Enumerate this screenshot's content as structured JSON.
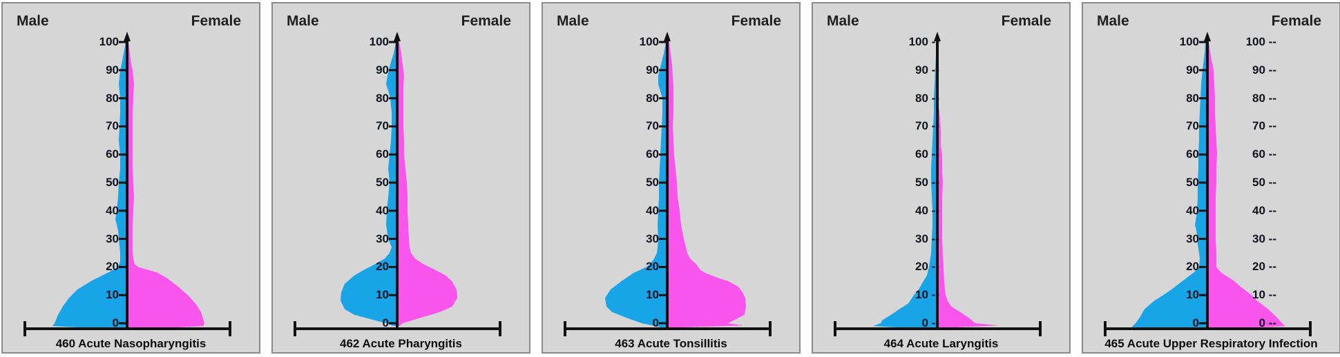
{
  "labels": {
    "male": "Male",
    "female": "Female"
  },
  "colors": {
    "male_fill": "#18a5e8",
    "female_fill": "#f954ec",
    "panel_bg": "#d6d6d6",
    "panel_border": "#8a8a8a",
    "axis": "#101010",
    "tick_text": "#10121e",
    "sex_label_text": "#1f1f1f",
    "title_text": "#0c0c0c",
    "page_bg": "#fdfdfd"
  },
  "y_axis": {
    "ticks": [
      0,
      10,
      20,
      30,
      40,
      50,
      60,
      70,
      80,
      90,
      100
    ],
    "bottom_value": 0,
    "top_value": 100,
    "tick_dash_suffix": " --"
  },
  "chart_data": {
    "type": "violin",
    "orientation": "vertical",
    "value_axis": "age, 0 to 100, tick labels every 10",
    "sides": {
      "left": "Male",
      "right": "Female"
    },
    "note": "Each panel is a back-to-back (male left / female right) age-distribution violin. Points are [age, half_width_px]; negative ages encode the thin foot hugging the baseline.",
    "panels": [
      {
        "title": "460 Acute Nasopharyngitis",
        "tick_style": "plain",
        "secondary_tick_labels": false,
        "male": [
          [
            100,
            2
          ],
          [
            96,
            5
          ],
          [
            92,
            8
          ],
          [
            90,
            10
          ],
          [
            85,
            12
          ],
          [
            80,
            10
          ],
          [
            75,
            10
          ],
          [
            70,
            11
          ],
          [
            65,
            12
          ],
          [
            60,
            10
          ],
          [
            55,
            10
          ],
          [
            50,
            12
          ],
          [
            45,
            13
          ],
          [
            40,
            15
          ],
          [
            37,
            17
          ],
          [
            33,
            13
          ],
          [
            30,
            12
          ],
          [
            25,
            10
          ],
          [
            22,
            10
          ],
          [
            20,
            13
          ],
          [
            18,
            28
          ],
          [
            15,
            52
          ],
          [
            12,
            72
          ],
          [
            9,
            84
          ],
          [
            6,
            93
          ],
          [
            3,
            100
          ],
          [
            0,
            105
          ],
          [
            -1,
            108
          ],
          [
            -1.8,
            45
          ]
        ],
        "female": [
          [
            100,
            2
          ],
          [
            96,
            4
          ],
          [
            92,
            6
          ],
          [
            90,
            8
          ],
          [
            85,
            10
          ],
          [
            80,
            9
          ],
          [
            75,
            8
          ],
          [
            70,
            8
          ],
          [
            65,
            8
          ],
          [
            60,
            8
          ],
          [
            55,
            8
          ],
          [
            50,
            9
          ],
          [
            45,
            10
          ],
          [
            40,
            9
          ],
          [
            35,
            8
          ],
          [
            30,
            8
          ],
          [
            26,
            8
          ],
          [
            23,
            9
          ],
          [
            21,
            11
          ],
          [
            20,
            16
          ],
          [
            19,
            30
          ],
          [
            18,
            44
          ],
          [
            16,
            58
          ],
          [
            13,
            74
          ],
          [
            10,
            88
          ],
          [
            7,
            99
          ],
          [
            4,
            107
          ],
          [
            0,
            112
          ],
          [
            -1,
            110
          ],
          [
            -1.8,
            45
          ]
        ]
      },
      {
        "title": "462 Acute Pharyngitis",
        "tick_style": "plain",
        "secondary_tick_labels": false,
        "male": [
          [
            100,
            2
          ],
          [
            96,
            5
          ],
          [
            92,
            10
          ],
          [
            88,
            14
          ],
          [
            85,
            16
          ],
          [
            82,
            12
          ],
          [
            80,
            10
          ],
          [
            75,
            8
          ],
          [
            70,
            8
          ],
          [
            65,
            9
          ],
          [
            60,
            11
          ],
          [
            55,
            13
          ],
          [
            50,
            11
          ],
          [
            45,
            13
          ],
          [
            40,
            15
          ],
          [
            35,
            16
          ],
          [
            30,
            13
          ],
          [
            27,
            8
          ],
          [
            25,
            11
          ],
          [
            23,
            18
          ],
          [
            21,
            32
          ],
          [
            19,
            48
          ],
          [
            17,
            62
          ],
          [
            14,
            76
          ],
          [
            11,
            81
          ],
          [
            8,
            82
          ],
          [
            5,
            76
          ],
          [
            3,
            62
          ],
          [
            1,
            32
          ],
          [
            0,
            16
          ],
          [
            -1,
            5
          ]
        ],
        "female": [
          [
            100,
            3
          ],
          [
            96,
            6
          ],
          [
            92,
            8
          ],
          [
            88,
            10
          ],
          [
            84,
            9
          ],
          [
            80,
            9
          ],
          [
            75,
            9
          ],
          [
            70,
            9
          ],
          [
            65,
            10
          ],
          [
            60,
            10
          ],
          [
            55,
            12
          ],
          [
            50,
            14
          ],
          [
            45,
            15
          ],
          [
            40,
            15
          ],
          [
            35,
            16
          ],
          [
            30,
            17
          ],
          [
            27,
            18
          ],
          [
            25,
            20
          ],
          [
            23,
            26
          ],
          [
            21,
            38
          ],
          [
            19,
            55
          ],
          [
            17,
            70
          ],
          [
            15,
            79
          ],
          [
            12,
            86
          ],
          [
            9,
            87
          ],
          [
            6,
            80
          ],
          [
            4,
            62
          ],
          [
            2,
            35
          ],
          [
            0,
            8
          ],
          [
            -1,
            3
          ]
        ]
      },
      {
        "title": "463 Acute Tonsillitis",
        "tick_style": "plain",
        "secondary_tick_labels": false,
        "male": [
          [
            100,
            2
          ],
          [
            96,
            5
          ],
          [
            92,
            9
          ],
          [
            88,
            13
          ],
          [
            85,
            13
          ],
          [
            80,
            7
          ],
          [
            75,
            7
          ],
          [
            70,
            8
          ],
          [
            65,
            9
          ],
          [
            60,
            10
          ],
          [
            55,
            11
          ],
          [
            50,
            12
          ],
          [
            45,
            12
          ],
          [
            40,
            13
          ],
          [
            35,
            14
          ],
          [
            30,
            13
          ],
          [
            27,
            14
          ],
          [
            25,
            15
          ],
          [
            23,
            19
          ],
          [
            21,
            25
          ],
          [
            20,
            30
          ],
          [
            18,
            48
          ],
          [
            15,
            66
          ],
          [
            12,
            82
          ],
          [
            9,
            90
          ],
          [
            6,
            88
          ],
          [
            4,
            80
          ],
          [
            2,
            60
          ],
          [
            0,
            37
          ],
          [
            -1.5,
            8
          ]
        ],
        "female": [
          [
            100,
            3
          ],
          [
            96,
            5
          ],
          [
            92,
            7
          ],
          [
            88,
            8
          ],
          [
            84,
            9
          ],
          [
            80,
            9
          ],
          [
            75,
            9
          ],
          [
            70,
            8
          ],
          [
            65,
            9
          ],
          [
            60,
            10
          ],
          [
            55,
            12
          ],
          [
            50,
            14
          ],
          [
            45,
            15
          ],
          [
            40,
            18
          ],
          [
            35,
            20
          ],
          [
            30,
            24
          ],
          [
            27,
            27
          ],
          [
            25,
            29
          ],
          [
            23,
            33
          ],
          [
            21,
            42
          ],
          [
            19,
            48
          ],
          [
            18,
            54
          ],
          [
            17,
            64
          ],
          [
            16,
            75
          ],
          [
            15,
            88
          ],
          [
            13,
            103
          ],
          [
            11,
            109
          ],
          [
            9,
            113
          ],
          [
            6,
            114
          ],
          [
            3,
            112
          ],
          [
            0,
            88
          ],
          [
            -0.8,
            110
          ],
          [
            -1.5,
            15
          ]
        ]
      },
      {
        "title": "464 Acute Laryngitis",
        "tick_style": "dashes",
        "secondary_tick_labels": false,
        "male": [
          [
            100,
            1
          ],
          [
            95,
            2
          ],
          [
            90,
            3
          ],
          [
            85,
            4
          ],
          [
            80,
            5
          ],
          [
            75,
            5
          ],
          [
            70,
            6
          ],
          [
            65,
            7
          ],
          [
            60,
            8
          ],
          [
            55,
            9
          ],
          [
            50,
            9
          ],
          [
            45,
            8
          ],
          [
            40,
            7
          ],
          [
            35,
            7
          ],
          [
            30,
            8
          ],
          [
            25,
            9
          ],
          [
            20,
            12
          ],
          [
            17,
            15
          ],
          [
            15,
            20
          ],
          [
            12,
            27
          ],
          [
            10,
            34
          ],
          [
            7,
            42
          ],
          [
            5,
            55
          ],
          [
            3,
            67
          ],
          [
            1,
            80
          ],
          [
            0,
            82
          ],
          [
            -1,
            93
          ],
          [
            -1.8,
            35
          ]
        ],
        "female": [
          [
            80,
            1
          ],
          [
            77,
            2
          ],
          [
            73,
            4
          ],
          [
            68,
            5
          ],
          [
            63,
            5
          ],
          [
            60,
            7
          ],
          [
            55,
            7
          ],
          [
            50,
            8
          ],
          [
            45,
            7
          ],
          [
            40,
            7
          ],
          [
            35,
            7
          ],
          [
            30,
            7
          ],
          [
            25,
            8
          ],
          [
            20,
            9
          ],
          [
            15,
            10
          ],
          [
            12,
            11
          ],
          [
            10,
            12
          ],
          [
            8,
            15
          ],
          [
            6,
            20
          ],
          [
            4,
            33
          ],
          [
            2,
            45
          ],
          [
            0,
            55
          ],
          [
            -0.8,
            88
          ],
          [
            -1.5,
            25
          ]
        ]
      },
      {
        "title": "465 Acute Upper Respiratory Infection",
        "tick_style": "plain",
        "secondary_tick_labels": true,
        "male": [
          [
            100,
            3
          ],
          [
            96,
            4
          ],
          [
            92,
            6
          ],
          [
            88,
            8
          ],
          [
            85,
            9
          ],
          [
            80,
            10
          ],
          [
            75,
            11
          ],
          [
            70,
            12
          ],
          [
            65,
            12
          ],
          [
            60,
            13
          ],
          [
            55,
            13
          ],
          [
            50,
            14
          ],
          [
            45,
            14
          ],
          [
            40,
            15
          ],
          [
            38,
            16
          ],
          [
            35,
            18
          ],
          [
            33,
            16
          ],
          [
            30,
            14
          ],
          [
            28,
            14
          ],
          [
            25,
            12
          ],
          [
            23,
            11
          ],
          [
            20,
            12
          ],
          [
            18,
            20
          ],
          [
            15,
            36
          ],
          [
            12,
            52
          ],
          [
            10,
            64
          ],
          [
            8,
            77
          ],
          [
            5,
            91
          ],
          [
            2,
            98
          ],
          [
            0,
            104
          ],
          [
            -1.5,
            110
          ],
          [
            -2,
            45
          ]
        ],
        "female": [
          [
            100,
            2
          ],
          [
            95,
            5
          ],
          [
            90,
            9
          ],
          [
            85,
            10
          ],
          [
            80,
            11
          ],
          [
            75,
            11
          ],
          [
            70,
            12
          ],
          [
            65,
            13
          ],
          [
            60,
            14
          ],
          [
            55,
            13
          ],
          [
            50,
            13
          ],
          [
            45,
            12
          ],
          [
            40,
            12
          ],
          [
            35,
            12
          ],
          [
            30,
            12
          ],
          [
            25,
            13
          ],
          [
            20,
            13
          ],
          [
            18,
            20
          ],
          [
            15,
            39
          ],
          [
            13,
            48
          ],
          [
            10,
            64
          ],
          [
            8,
            72
          ],
          [
            5,
            88
          ],
          [
            2,
            101
          ],
          [
            0,
            108
          ],
          [
            -1,
            113
          ],
          [
            -2,
            35
          ]
        ]
      }
    ]
  }
}
